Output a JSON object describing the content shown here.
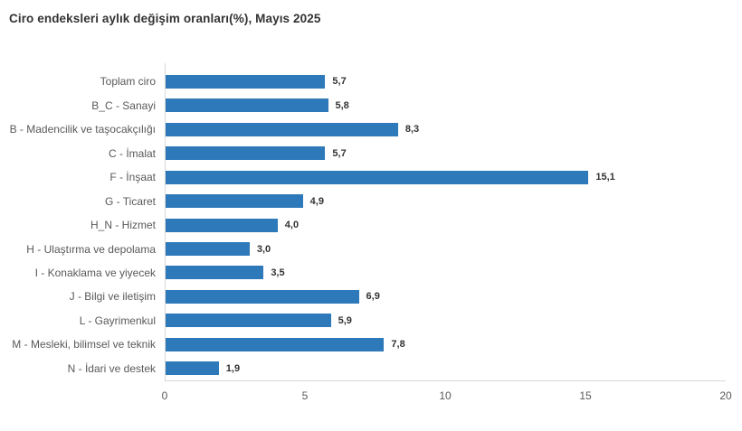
{
  "title": "Ciro endeksleri aylık değişim oranları(%), Mayıs 2025",
  "colors": {
    "bar": "#2e79b9",
    "title_text": "#333333",
    "category_text": "#595959",
    "value_text": "#333333",
    "axis_line": "#d9d9d9",
    "background": "#ffffff"
  },
  "chart_data": {
    "type": "bar",
    "orientation": "horizontal",
    "title": "Ciro endeksleri aylık değişim oranları(%), Mayıs 2025",
    "xlabel": "",
    "ylabel": "",
    "xlim": [
      0,
      20
    ],
    "x_ticks": [
      "0",
      "5",
      "10",
      "15",
      "20"
    ],
    "grid": false,
    "legend": false,
    "categories": [
      "Toplam ciro",
      "B_C - Sanayi",
      "B - Madencilik ve taşocakçılığı",
      "C - İmalat",
      "F - İnşaat",
      "G - Ticaret",
      "H_N - Hizmet",
      "H - Ulaştırma ve depolama",
      "I - Konaklama ve yiyecek",
      "J - Bilgi ve iletişim",
      "L - Gayrimenkul",
      "M - Mesleki, bilimsel ve teknik",
      "N - İdari ve destek"
    ],
    "values": [
      5.7,
      5.8,
      8.3,
      5.7,
      15.1,
      4.9,
      4.0,
      3.0,
      3.5,
      6.9,
      5.9,
      7.8,
      1.9
    ],
    "value_labels": [
      "5,7",
      "5,8",
      "8,3",
      "5,7",
      "15,1",
      "4,9",
      "4,0",
      "3,0",
      "3,5",
      "6,9",
      "5,9",
      "7,8",
      "1,9"
    ]
  }
}
